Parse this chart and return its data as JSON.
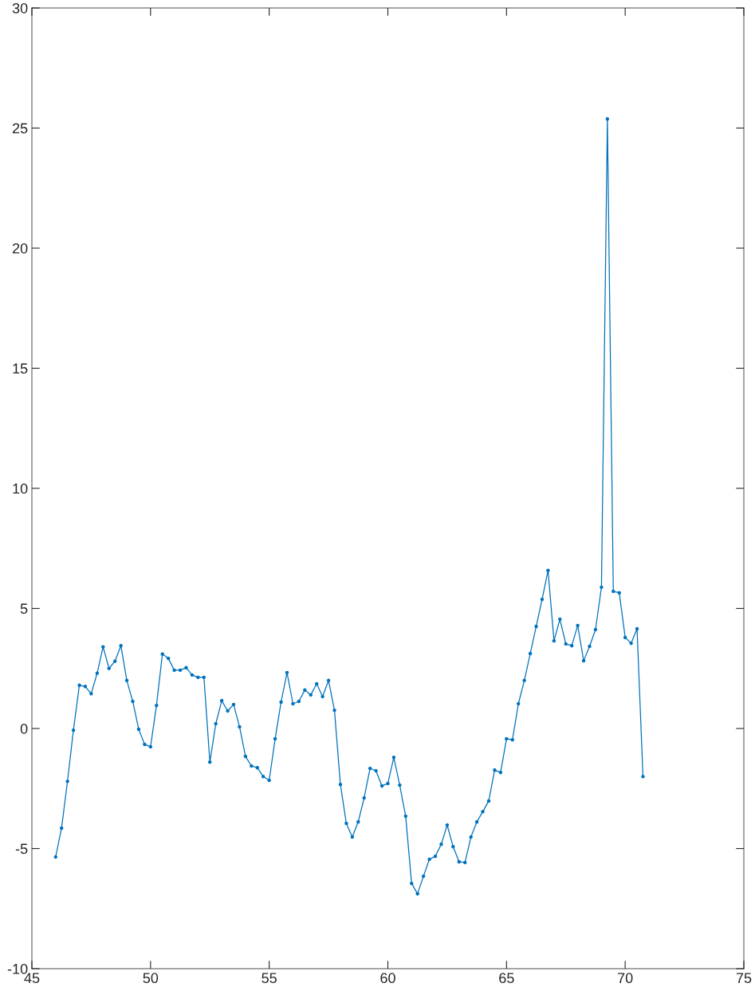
{
  "chart_data": {
    "type": "line",
    "color": "#0072bd",
    "marker": "circle",
    "line_style": "solid",
    "grid": false,
    "legend": false,
    "xlim": [
      45,
      75
    ],
    "xticks": [
      45,
      50,
      55,
      60,
      65,
      70,
      75
    ],
    "ylim": [
      -10,
      30
    ],
    "yticks": [
      {
        "value": -10,
        "label": "-10"
      },
      {
        "value": -5,
        "label": "-5"
      },
      0,
      5,
      10,
      15,
      20,
      25,
      30
    ],
    "x": [
      46,
      46.25,
      46.5,
      46.75,
      47,
      47.25,
      47.5,
      47.75,
      48,
      48.25,
      48.5,
      48.75,
      49,
      49.25,
      49.5,
      49.75,
      50,
      50.25,
      50.5,
      50.75,
      51,
      51.25,
      51.5,
      51.75,
      52,
      52.25,
      52.5,
      52.75,
      53,
      53.25,
      53.5,
      53.75,
      54,
      54.25,
      54.5,
      54.75,
      55,
      55.25,
      55.5,
      55.75,
      56,
      56.25,
      56.5,
      56.75,
      57,
      57.25,
      57.5,
      57.75,
      58,
      58.25,
      58.5,
      58.75,
      59,
      59.25,
      59.5,
      59.75,
      60,
      60.25,
      60.5,
      60.75,
      61,
      61.25,
      61.5,
      61.75,
      62,
      62.25,
      62.5,
      62.75,
      63,
      63.25,
      63.5,
      63.75,
      64,
      64.25,
      64.5,
      64.75,
      65,
      65.25,
      65.5,
      65.75,
      66,
      66.25,
      66.5,
      66.75,
      67,
      67.25,
      67.5,
      67.75,
      68,
      68.25,
      68.5,
      68.75,
      69,
      69.25,
      69.5,
      69.75,
      70,
      70.25,
      70.5,
      70.75
    ],
    "values": [
      -5.35,
      -4.15,
      -2.2,
      -0.07,
      1.8,
      1.75,
      1.45,
      2.3,
      3.4,
      2.5,
      2.8,
      3.45,
      2.0,
      1.13,
      -0.03,
      -0.66,
      -0.76,
      0.96,
      3.1,
      2.92,
      2.43,
      2.43,
      2.53,
      2.23,
      2.13,
      2.13,
      -1.4,
      0.2,
      1.16,
      0.73,
      1.0,
      0.07,
      -1.16,
      -1.56,
      -1.63,
      -2.0,
      -2.16,
      -0.43,
      1.1,
      2.33,
      1.03,
      1.13,
      1.6,
      1.4,
      1.86,
      1.33,
      2.0,
      0.76,
      -2.33,
      -3.95,
      -4.52,
      -3.89,
      -2.89,
      -1.66,
      -1.76,
      -2.39,
      -2.29,
      -1.2,
      -2.36,
      -3.65,
      -6.45,
      -6.88,
      -6.15,
      -5.45,
      -5.32,
      -4.82,
      -4.02,
      -4.92,
      -5.55,
      -5.58,
      -4.52,
      -3.89,
      -3.46,
      -3.02,
      -1.73,
      -1.83,
      -0.43,
      -0.47,
      1.03,
      2.0,
      3.12,
      4.25,
      5.38,
      6.58,
      3.65,
      4.55,
      3.52,
      3.45,
      4.29,
      2.82,
      3.42,
      4.12,
      5.88,
      25.38,
      5.71,
      5.65,
      3.79,
      3.55,
      4.15,
      -2.0
    ]
  }
}
